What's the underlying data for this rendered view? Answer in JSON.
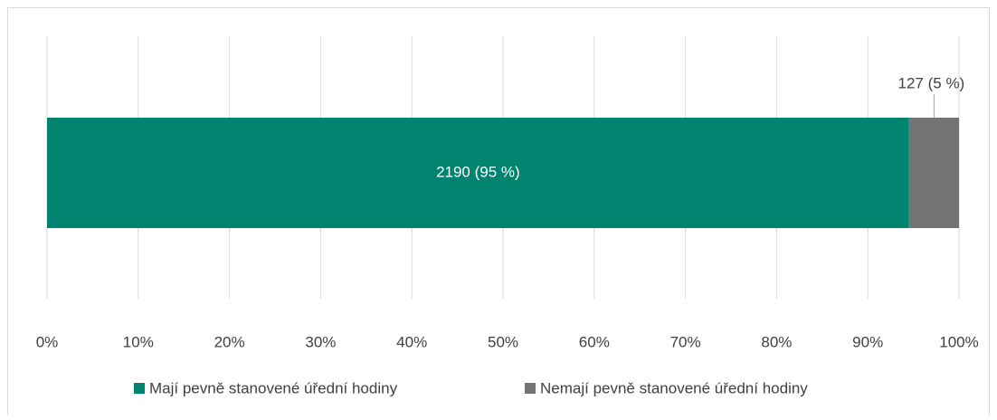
{
  "chart_data": {
    "type": "stacked-barh",
    "categories": [
      null
    ],
    "series": [
      {
        "name": "Mají pevně stanovené úřední hodiny",
        "color": "#00846f",
        "values": [
          94.52
        ],
        "value_labels": [
          "2190 (95 %)"
        ]
      },
      {
        "name": "Nemají pevně stanovené úřední hodiny",
        "color": "#737373",
        "values": [
          5.48
        ],
        "value_labels": [
          "127 (5 %)"
        ]
      }
    ],
    "xlim": [
      0,
      100
    ],
    "xticks": [
      {
        "value": 0,
        "label": "0%"
      },
      {
        "value": 10,
        "label": "10%"
      },
      {
        "value": 20,
        "label": "20%"
      },
      {
        "value": 30,
        "label": "30%"
      },
      {
        "value": 40,
        "label": "40%"
      },
      {
        "value": 50,
        "label": "50%"
      },
      {
        "value": 60,
        "label": "60%"
      },
      {
        "value": 70,
        "label": "70%"
      },
      {
        "value": 80,
        "label": "80%"
      },
      {
        "value": 90,
        "label": "90%"
      },
      {
        "value": 100,
        "label": "100%"
      }
    ],
    "grid": true,
    "legend": "bottom"
  }
}
